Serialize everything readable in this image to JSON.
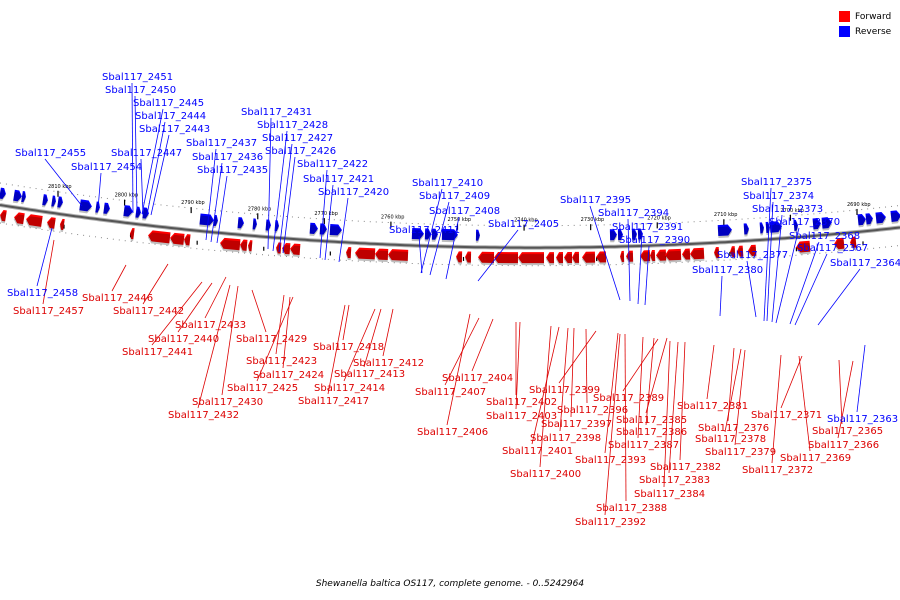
{
  "legend": {
    "forward_label": "Forward",
    "reverse_label": "Reverse",
    "forward_color": "#ff0000",
    "reverse_color": "#0000ff"
  },
  "caption": "Shewanella baltica OS117, complete genome. - 0..5242964",
  "axis": {
    "ticks": [
      {
        "label": "2810 kbp",
        "kbp": 2810
      },
      {
        "label": "2800 kbp",
        "kbp": 2800
      },
      {
        "label": "2790 kbp",
        "kbp": 2790
      },
      {
        "label": "2780 kbp",
        "kbp": 2780
      },
      {
        "label": "2770 kbp",
        "kbp": 2770
      },
      {
        "label": "2760 kbp",
        "kbp": 2760
      },
      {
        "label": "2750 kbp",
        "kbp": 2750
      },
      {
        "label": "2740 kbp",
        "kbp": 2740
      },
      {
        "label": "2730 kbp",
        "kbp": 2730
      },
      {
        "label": "2720 kbp",
        "kbp": 2720
      },
      {
        "label": "2710 kbp",
        "kbp": 2710
      },
      {
        "label": "2700 kbp",
        "kbp": 2700
      },
      {
        "label": "2690 kbp",
        "kbp": 2690
      }
    ]
  },
  "reverse_labels": [
    "Sbal117_2451",
    "Sbal117_2450",
    "Sbal117_2445",
    "Sbal117_2444",
    "Sbal117_2443",
    "Sbal117_2447",
    "Sbal117_2455",
    "Sbal117_2454",
    "Sbal117_2431",
    "Sbal117_2428",
    "Sbal117_2427",
    "Sbal117_2437",
    "Sbal117_2426",
    "Sbal117_2436",
    "Sbal117_2422",
    "Sbal117_2435",
    "Sbal117_2421",
    "Sbal117_2420",
    "Sbal117_2410",
    "Sbal117_2409",
    "Sbal117_2408",
    "Sbal117_2405",
    "Sbal117_2411",
    "Sbal117_2395",
    "Sbal117_2394",
    "Sbal117_2391",
    "Sbal117_2390",
    "Sbal117_2375",
    "Sbal117_2374",
    "Sbal117_2373",
    "Sbal117_2370",
    "Sbal117_2368",
    "Sbal117_2367",
    "Sbal117_2377",
    "Sbal117_2380",
    "Sbal117_2364",
    "Sbal117_2458",
    "Sbal117_2363"
  ],
  "forward_labels": [
    "Sbal117_2457",
    "Sbal117_2446",
    "Sbal117_2442",
    "Sbal117_2433",
    "Sbal117_2440",
    "Sbal117_2441",
    "Sbal117_2429",
    "Sbal117_2423",
    "Sbal117_2424",
    "Sbal117_2425",
    "Sbal117_2430",
    "Sbal117_2432",
    "Sbal117_2418",
    "Sbal117_2412",
    "Sbal117_2413",
    "Sbal117_2414",
    "Sbal117_2417",
    "Sbal117_2404",
    "Sbal117_2407",
    "Sbal117_2406",
    "Sbal117_2403",
    "Sbal117_2402",
    "Sbal117_2399",
    "Sbal117_2396",
    "Sbal117_2397",
    "Sbal117_2398",
    "Sbal117_2401",
    "Sbal117_2400",
    "Sbal117_2393",
    "Sbal117_2389",
    "Sbal117_2385",
    "Sbal117_2386",
    "Sbal117_2387",
    "Sbal117_2388",
    "Sbal117_2392",
    "Sbal117_2381",
    "Sbal117_2382",
    "Sbal117_2383",
    "Sbal117_2384",
    "Sbal117_2376",
    "Sbal117_2378",
    "Sbal117_2379",
    "Sbal117_2371",
    "Sbal117_2369",
    "Sbal117_2372",
    "Sbal117_2365",
    "Sbal117_2366"
  ]
}
